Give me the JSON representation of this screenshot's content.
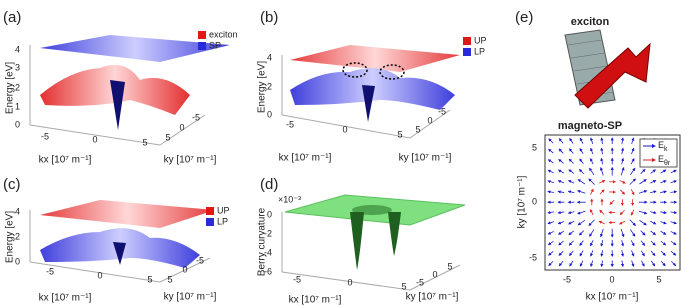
{
  "panels": [
    {
      "label": "(a)",
      "y_axis": "Energy [eV]",
      "y_ticks": [
        "4",
        "3",
        "2",
        "1",
        "0"
      ],
      "x_axis": "kx [10⁷ m⁻¹]",
      "x_ticks": [
        "-5",
        "0",
        "5"
      ],
      "depth_axis": "ky [10⁷ m⁻¹]",
      "depth_ticks": [
        "5",
        "0",
        "-5"
      ],
      "legend": [
        "exciton",
        "SP"
      ]
    },
    {
      "label": "(b)",
      "y_axis": "Energy [eV]",
      "y_ticks": [
        "4",
        "2",
        "0"
      ],
      "x_axis": "kx [10⁷ m⁻¹]",
      "x_ticks": [
        "-5",
        "0",
        "5"
      ],
      "depth_axis": "ky [10⁷ m⁻¹]",
      "depth_ticks": [
        "5",
        "0",
        "-5"
      ],
      "legend": [
        "UP",
        "LP"
      ]
    },
    {
      "label": "(c)",
      "y_axis": "Energy [eV]",
      "y_ticks": [
        "4",
        "2",
        "0"
      ],
      "x_axis": "kx [10⁷ m⁻¹]",
      "x_ticks": [
        "-5",
        "0",
        "5"
      ],
      "depth_axis": "ky [10⁷ m⁻¹]",
      "depth_ticks": [
        "5",
        "0",
        "-5"
      ],
      "legend": [
        "UP",
        "LP"
      ]
    },
    {
      "label": "(d)",
      "scale": "×10⁻³",
      "y_axis": "Berry curvature",
      "y_ticks": [
        "0",
        "-2",
        "-4",
        "-6"
      ],
      "x_axis": "kx [10⁷ m⁻¹]",
      "x_ticks": [
        "-5",
        "0",
        "5"
      ],
      "depth_axis": "ky [10⁷ m⁻¹]",
      "depth_ticks": [
        "-5",
        "0",
        "5"
      ]
    },
    {
      "label": "(e)",
      "title_top": "exciton",
      "title_bottom": "magneto-SP",
      "y_axis": "ky [10⁷ m⁻¹]",
      "y_ticks": [
        "5",
        "0",
        "-5"
      ],
      "x_axis": "kx [10⁷ m⁻¹]",
      "x_ticks": [
        "-5",
        "0",
        "5"
      ],
      "legend": [
        {
          "base": "E",
          "sub": "k"
        },
        {
          "base": "E",
          "sub": "θr"
        }
      ]
    }
  ]
}
